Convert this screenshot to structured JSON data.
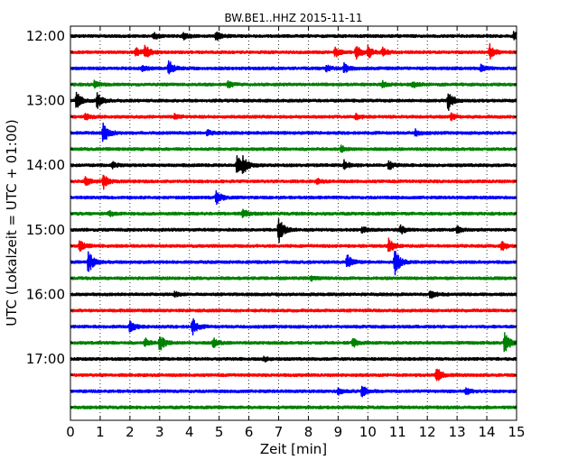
{
  "chart_data": {
    "type": "line",
    "title": "BW.BE1..HHZ 2015-11-11",
    "xlabel": "Zeit  [min]",
    "ylabel": "UTC (Lokalzeit = UTC + 01:00)",
    "xlim": [
      0,
      15
    ],
    "x_ticks": [
      "0",
      "1",
      "2",
      "3",
      "4",
      "5",
      "6",
      "7",
      "8",
      "9",
      "10",
      "11",
      "12",
      "13",
      "14",
      "15"
    ],
    "y_tick_labels": [
      "12:00",
      "13:00",
      "14:00",
      "15:00",
      "16:00",
      "17:00"
    ],
    "grid": "vertical dotted",
    "color_cycle": [
      "#000000",
      "#ff0000",
      "#0000ff",
      "#008000"
    ],
    "traces": [
      {
        "start": "12:00",
        "events": [
          [
            2.8,
            0.2
          ],
          [
            3.8,
            0.2
          ],
          [
            4.9,
            0.3
          ],
          [
            14.9,
            0.25
          ]
        ]
      },
      {
        "start": "12:15",
        "events": [
          [
            2.2,
            0.3
          ],
          [
            2.5,
            0.5
          ],
          [
            8.9,
            0.3
          ],
          [
            9.6,
            0.5
          ],
          [
            10.0,
            0.4
          ],
          [
            10.5,
            0.3
          ],
          [
            14.1,
            0.5
          ]
        ]
      },
      {
        "start": "12:30",
        "events": [
          [
            2.4,
            0.2
          ],
          [
            3.3,
            0.6
          ],
          [
            8.6,
            0.2
          ],
          [
            9.2,
            0.3
          ],
          [
            13.8,
            0.2
          ]
        ]
      },
      {
        "start": "12:45",
        "events": [
          [
            0.8,
            0.2
          ],
          [
            5.3,
            0.2
          ],
          [
            10.5,
            0.2
          ],
          [
            11.5,
            0.2
          ]
        ]
      },
      {
        "start": "13:00",
        "events": [
          [
            0.2,
            0.6
          ],
          [
            0.9,
            0.5
          ],
          [
            12.7,
            0.7
          ]
        ]
      },
      {
        "start": "13:15",
        "events": [
          [
            0.5,
            0.2
          ],
          [
            3.5,
            0.15
          ],
          [
            9.6,
            0.2
          ],
          [
            12.8,
            0.2
          ]
        ]
      },
      {
        "start": "13:30",
        "events": [
          [
            1.1,
            0.8
          ],
          [
            4.6,
            0.2
          ],
          [
            11.6,
            0.2
          ]
        ]
      },
      {
        "start": "13:45",
        "events": [
          [
            9.1,
            0.2
          ]
        ]
      },
      {
        "start": "14:00",
        "events": [
          [
            1.4,
            0.2
          ],
          [
            5.6,
            0.7
          ],
          [
            5.8,
            0.5
          ],
          [
            9.2,
            0.3
          ],
          [
            10.7,
            0.3
          ]
        ]
      },
      {
        "start": "14:15",
        "events": [
          [
            0.5,
            0.3
          ],
          [
            1.1,
            0.5
          ],
          [
            8.3,
            0.15
          ]
        ]
      },
      {
        "start": "14:30",
        "events": [
          [
            4.9,
            0.5
          ]
        ]
      },
      {
        "start": "14:45",
        "events": [
          [
            1.3,
            0.2
          ],
          [
            5.8,
            0.3
          ]
        ]
      },
      {
        "start": "15:00",
        "events": [
          [
            7.0,
            0.9
          ],
          [
            9.8,
            0.2
          ],
          [
            11.1,
            0.3
          ],
          [
            13.0,
            0.2
          ]
        ]
      },
      {
        "start": "15:15",
        "events": [
          [
            0.3,
            0.4
          ],
          [
            10.7,
            0.5
          ],
          [
            14.5,
            0.3
          ]
        ]
      },
      {
        "start": "15:30",
        "events": [
          [
            0.6,
            0.8
          ],
          [
            9.3,
            0.5
          ],
          [
            10.9,
            1.0
          ]
        ]
      },
      {
        "start": "15:45",
        "events": [
          [
            8.1,
            0.15
          ]
        ]
      },
      {
        "start": "16:00",
        "events": [
          [
            3.5,
            0.15
          ],
          [
            12.1,
            0.3
          ]
        ]
      },
      {
        "start": "16:15",
        "events": []
      },
      {
        "start": "16:30",
        "events": [
          [
            2.0,
            0.4
          ],
          [
            4.1,
            0.6
          ]
        ]
      },
      {
        "start": "16:45",
        "events": [
          [
            2.5,
            0.3
          ],
          [
            3.0,
            0.6
          ],
          [
            4.8,
            0.3
          ],
          [
            9.5,
            0.3
          ],
          [
            14.6,
            0.8
          ]
        ]
      },
      {
        "start": "17:00",
        "events": [
          [
            6.5,
            0.15
          ]
        ]
      },
      {
        "start": "17:15",
        "events": [
          [
            12.3,
            0.6
          ]
        ]
      },
      {
        "start": "17:30",
        "events": [
          [
            9.0,
            0.25
          ],
          [
            9.8,
            0.4
          ],
          [
            13.3,
            0.2
          ]
        ]
      },
      {
        "start": "17:45",
        "events": []
      }
    ]
  }
}
